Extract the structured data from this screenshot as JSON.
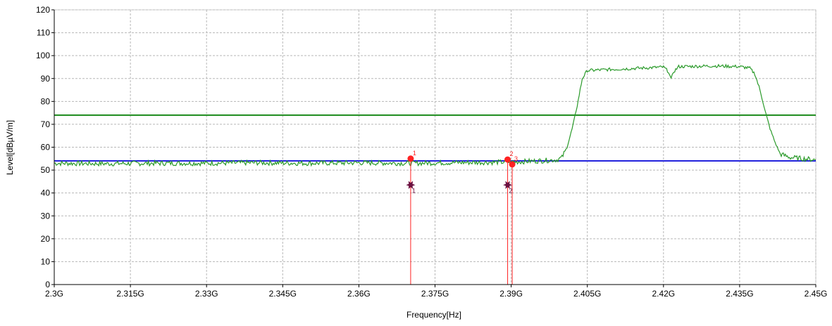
{
  "chart_data": {
    "type": "line",
    "title": "",
    "xlabel": "Frequency[Hz]",
    "ylabel": "Level[dBµV/m]",
    "xlim": [
      2.3,
      2.45
    ],
    "ylim": [
      0,
      120
    ],
    "x_unit": "GHz",
    "x_ticks": [
      {
        "value": 2.3,
        "label": "2.3G"
      },
      {
        "value": 2.315,
        "label": "2.315G"
      },
      {
        "value": 2.33,
        "label": "2.33G"
      },
      {
        "value": 2.345,
        "label": "2.345G"
      },
      {
        "value": 2.36,
        "label": "2.36G"
      },
      {
        "value": 2.375,
        "label": "2.375G"
      },
      {
        "value": 2.39,
        "label": "2.39G"
      },
      {
        "value": 2.405,
        "label": "2.405G"
      },
      {
        "value": 2.42,
        "label": "2.42G"
      },
      {
        "value": 2.435,
        "label": "2.435G"
      },
      {
        "value": 2.45,
        "label": "2.45G"
      }
    ],
    "y_ticks": [
      0,
      10,
      20,
      30,
      40,
      50,
      60,
      70,
      80,
      90,
      100,
      110,
      120
    ],
    "grid": true,
    "legend": "none",
    "limit_lines": [
      {
        "value": 74,
        "color": "#1a8a1a"
      },
      {
        "value": 54,
        "color": "#2222dd"
      }
    ],
    "trace": {
      "color": "#2a9a2a",
      "points": [
        [
          2.3,
          53
        ],
        [
          2.31,
          52.8
        ],
        [
          2.32,
          53
        ],
        [
          2.33,
          53
        ],
        [
          2.34,
          53.2
        ],
        [
          2.35,
          53
        ],
        [
          2.36,
          53.2
        ],
        [
          2.37,
          53
        ],
        [
          2.38,
          53.3
        ],
        [
          2.39,
          53.5
        ],
        [
          2.395,
          54
        ],
        [
          2.399,
          54.5
        ],
        [
          2.4,
          55.5
        ],
        [
          2.401,
          60
        ],
        [
          2.402,
          68
        ],
        [
          2.403,
          78
        ],
        [
          2.404,
          90
        ],
        [
          2.405,
          93.5
        ],
        [
          2.41,
          94
        ],
        [
          2.415,
          94.5
        ],
        [
          2.42,
          95
        ],
        [
          2.421,
          93
        ],
        [
          2.4215,
          89.5
        ],
        [
          2.422,
          93
        ],
        [
          2.423,
          95.2
        ],
        [
          2.43,
          95.5
        ],
        [
          2.435,
          95.2
        ],
        [
          2.437,
          94.5
        ],
        [
          2.438,
          92
        ],
        [
          2.439,
          85
        ],
        [
          2.44,
          76
        ],
        [
          2.441,
          68
        ],
        [
          2.442,
          62
        ],
        [
          2.443,
          57
        ],
        [
          2.445,
          55.5
        ],
        [
          2.45,
          54.5
        ]
      ]
    },
    "markers": [
      {
        "label": "1",
        "x": 2.3702,
        "y": 55,
        "type": "peak",
        "color": "#ff2222"
      },
      {
        "label": "2",
        "x": 2.3893,
        "y": 54.6,
        "type": "peak",
        "color": "#ff2222"
      },
      {
        "label": "3",
        "x": 2.3902,
        "y": 52.5,
        "type": "peak",
        "color": "#ff2222"
      },
      {
        "label": "1",
        "x": 2.3702,
        "y": 43.5,
        "type": "average",
        "color": "#6b1040"
      },
      {
        "label": "2",
        "x": 2.3893,
        "y": 43.5,
        "type": "average",
        "color": "#6b1040"
      }
    ]
  }
}
